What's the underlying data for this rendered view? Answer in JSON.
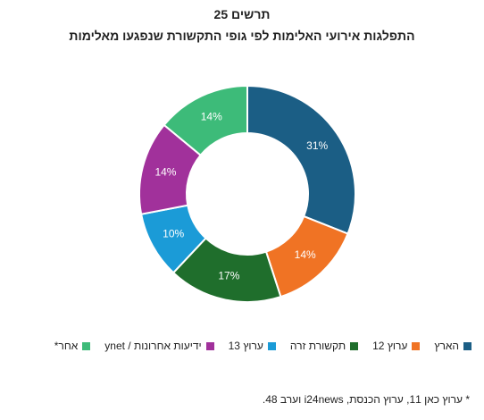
{
  "chart_data": {
    "type": "donut",
    "title": "תרשים 25",
    "subtitle": "התפלגות אירועי האלימות לפי גופי התקשורת שנפגעו מאלימות",
    "categories": [
      "הארץ",
      "ערוץ 12",
      "תקשורת זרה",
      "ערוץ 13",
      "ידיעות אחרונות / ynet",
      "אחר*"
    ],
    "values": [
      31,
      14,
      17,
      10,
      14,
      14
    ],
    "value_labels": [
      "31%",
      "14%",
      "17%",
      "10%",
      "14%",
      "14%"
    ],
    "colors": [
      "#1b5e85",
      "#f07324",
      "#1f6e2c",
      "#1b9bd7",
      "#a1319b",
      "#3dbb79"
    ],
    "note": "* ערוץ כאן 11, ערוץ הכנסת, i24news וערב 48."
  }
}
